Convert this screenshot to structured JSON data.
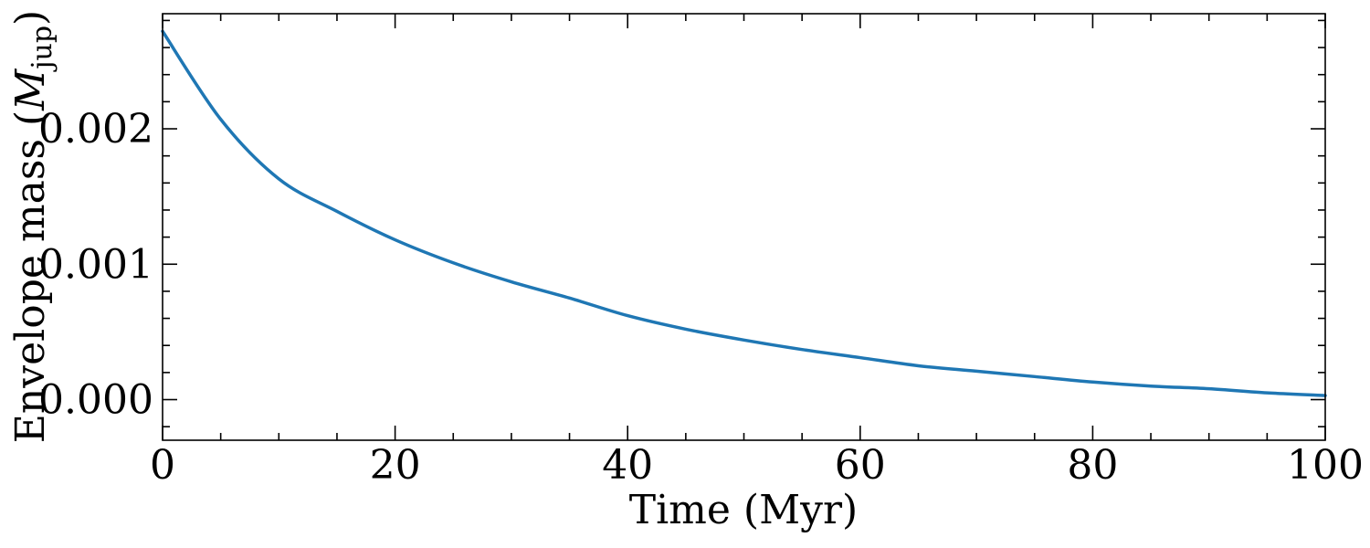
{
  "chart_data": {
    "type": "line",
    "title": "",
    "xlabel": "Time (Myr)",
    "ylabel": {
      "prefix": "Envelope mass (",
      "symbol": "M",
      "subscript": "jup",
      "suffix": ")"
    },
    "xlim": [
      0,
      100
    ],
    "ylim": [
      -0.0003,
      0.00285
    ],
    "xticks": [
      0,
      20,
      40,
      60,
      80,
      100
    ],
    "xtick_labels": [
      "0",
      "20",
      "40",
      "60",
      "80",
      "100"
    ],
    "yticks": [
      0.0,
      0.001,
      0.002
    ],
    "ytick_labels": [
      "0.000",
      "0.001",
      "0.002"
    ],
    "grid": false,
    "line_color": "#1f77b4",
    "series": [
      {
        "x": [
          0,
          5,
          10,
          15,
          20,
          25,
          30,
          35,
          40,
          45,
          50,
          55,
          60,
          65,
          70,
          75,
          80,
          85,
          90,
          95,
          100
        ],
        "y": [
          0.00272,
          0.00207,
          0.00163,
          0.00139,
          0.00118,
          0.00101,
          0.00087,
          0.00075,
          0.00062,
          0.00052,
          0.00044,
          0.00037,
          0.00031,
          0.00025,
          0.00021,
          0.00017,
          0.00013,
          0.0001,
          8e-05,
          5e-05,
          3e-05
        ]
      }
    ]
  }
}
